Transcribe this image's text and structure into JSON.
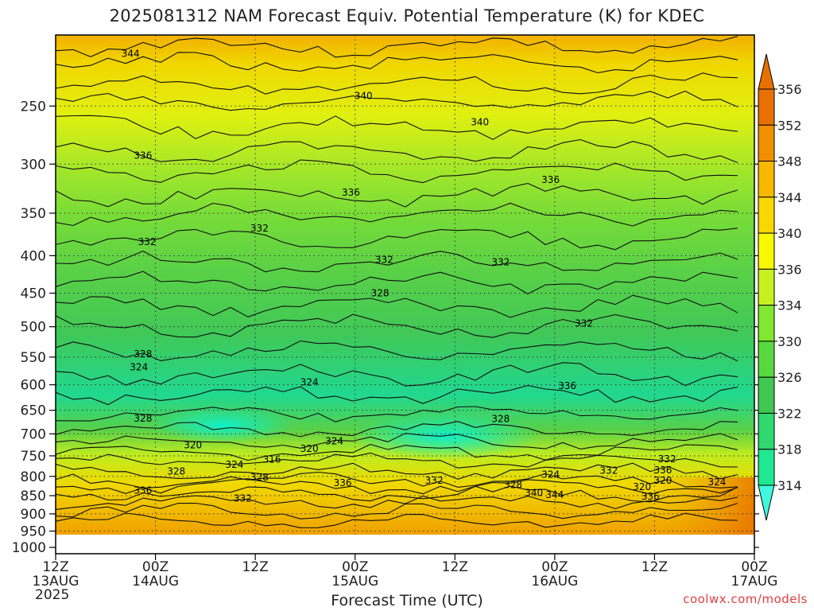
{
  "chart_data": {
    "type": "heatmap",
    "title": "2025081312 NAM Forecast Equiv. Potential Temperature (K) for KDEC",
    "xlabel": "Forecast Time (UTC)",
    "ylabel": "",
    "x_ticks": [
      {
        "hour": 0,
        "line1": "12Z",
        "line2": "13AUG"
      },
      {
        "hour": 12,
        "line1": "00Z",
        "line2": "14AUG"
      },
      {
        "hour": 24,
        "line1": "12Z",
        "line2": ""
      },
      {
        "hour": 36,
        "line1": "00Z",
        "line2": "15AUG"
      },
      {
        "hour": 48,
        "line1": "12Z",
        "line2": ""
      },
      {
        "hour": 60,
        "line1": "00Z",
        "line2": "16AUG"
      },
      {
        "hour": 72,
        "line1": "12Z",
        "line2": ""
      },
      {
        "hour": 84,
        "line1": "00Z",
        "line2": "17AUG"
      }
    ],
    "year_label": "2025",
    "x_range": [
      0,
      84
    ],
    "y_ticks": [
      250,
      300,
      350,
      400,
      450,
      500,
      550,
      600,
      650,
      700,
      750,
      800,
      850,
      900,
      950,
      1000
    ],
    "y_range": [
      1020,
      200
    ],
    "y_scale": "log",
    "grid": true,
    "colorbar": {
      "levels": [
        314,
        318,
        322,
        326,
        330,
        334,
        336,
        340,
        344,
        348,
        352,
        356
      ],
      "colors": [
        "#10f0c0",
        "#20e890",
        "#30d870",
        "#40c850",
        "#5ad840",
        "#80e830",
        "#c8f020",
        "#f8f800",
        "#f8d800",
        "#f8b800",
        "#f09000",
        "#e87000"
      ]
    },
    "contour_labels": [
      {
        "t": 9,
        "p": 212,
        "v": "344"
      },
      {
        "t": 37,
        "p": 242,
        "v": "340"
      },
      {
        "t": 51,
        "p": 263,
        "v": "340"
      },
      {
        "t": 10.5,
        "p": 292,
        "v": "336"
      },
      {
        "t": 35.5,
        "p": 328,
        "v": "336"
      },
      {
        "t": 59.5,
        "p": 315,
        "v": "336"
      },
      {
        "t": 11,
        "p": 383,
        "v": "332"
      },
      {
        "t": 24.5,
        "p": 367,
        "v": "332"
      },
      {
        "t": 39.5,
        "p": 405,
        "v": "332"
      },
      {
        "t": 53.5,
        "p": 408,
        "v": "332"
      },
      {
        "t": 39,
        "p": 450,
        "v": "328"
      },
      {
        "t": 63.5,
        "p": 495,
        "v": "332"
      },
      {
        "t": 10.5,
        "p": 545,
        "v": "328"
      },
      {
        "t": 10,
        "p": 568,
        "v": "324"
      },
      {
        "t": 30.5,
        "p": 595,
        "v": "324"
      },
      {
        "t": 61.5,
        "p": 602,
        "v": "336"
      },
      {
        "t": 10.5,
        "p": 667,
        "v": "328"
      },
      {
        "t": 53.5,
        "p": 668,
        "v": "328"
      },
      {
        "t": 16.5,
        "p": 725,
        "v": "320"
      },
      {
        "t": 30.5,
        "p": 733,
        "v": "320"
      },
      {
        "t": 33.5,
        "p": 716,
        "v": "324"
      },
      {
        "t": 26,
        "p": 759,
        "v": "316"
      },
      {
        "t": 21.5,
        "p": 771,
        "v": "324"
      },
      {
        "t": 14.5,
        "p": 788,
        "v": "328"
      },
      {
        "t": 24.5,
        "p": 802,
        "v": "328"
      },
      {
        "t": 34.5,
        "p": 817,
        "v": "336"
      },
      {
        "t": 45.5,
        "p": 811,
        "v": "332"
      },
      {
        "t": 10.5,
        "p": 836,
        "v": "336"
      },
      {
        "t": 22.5,
        "p": 857,
        "v": "332"
      },
      {
        "t": 55,
        "p": 822,
        "v": "328"
      },
      {
        "t": 57.5,
        "p": 843,
        "v": "340"
      },
      {
        "t": 60,
        "p": 848,
        "v": "344"
      },
      {
        "t": 59.5,
        "p": 795,
        "v": "324"
      },
      {
        "t": 66.5,
        "p": 786,
        "v": "332"
      },
      {
        "t": 73.5,
        "p": 758,
        "v": "332"
      },
      {
        "t": 73,
        "p": 785,
        "v": "336"
      },
      {
        "t": 70.5,
        "p": 827,
        "v": "320"
      },
      {
        "t": 73,
        "p": 811,
        "v": "320"
      },
      {
        "t": 71.5,
        "p": 852,
        "v": "336"
      },
      {
        "t": 79.5,
        "p": 815,
        "v": "324"
      }
    ]
  },
  "credit": "coolwx.com/models"
}
